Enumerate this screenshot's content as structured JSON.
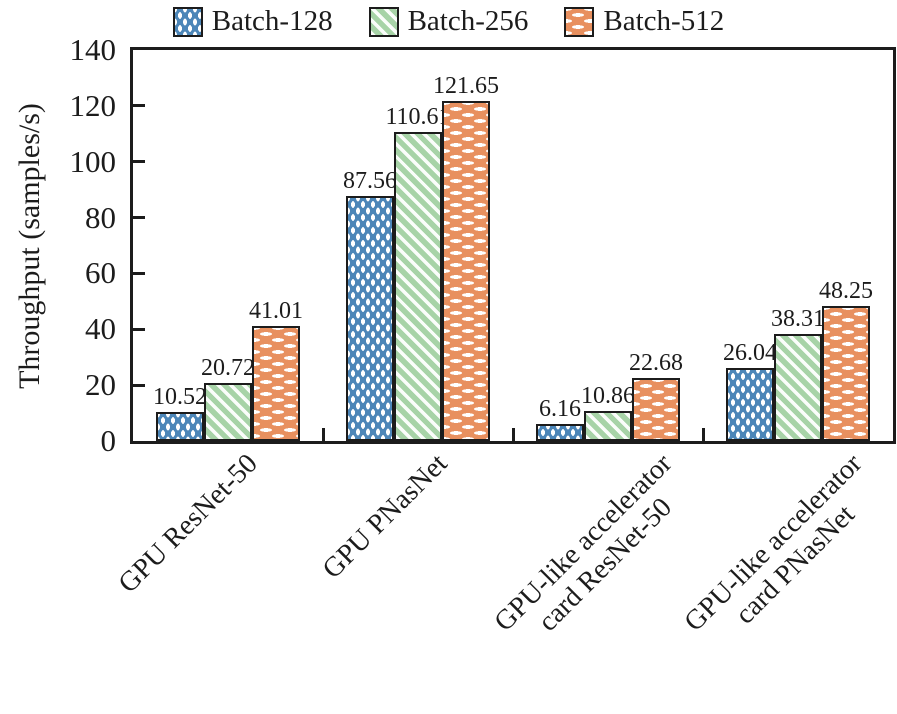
{
  "colors": {
    "batch_128": "#4c86b8",
    "batch_256": "#a7d3a7",
    "batch_512": "#e8905f",
    "axis_and_text": "#1c1c1c",
    "background": "#ffffff"
  },
  "legend": {
    "position": "top",
    "items": [
      {
        "label": "Batch-128",
        "pattern": "white-vertical-dashes-on-blue"
      },
      {
        "label": "Batch-256",
        "pattern": "white-diagonal-stripes-on-green"
      },
      {
        "label": "Batch-512",
        "pattern": "white-horizontal-dashes-on-orange"
      }
    ]
  },
  "chart_data": {
    "type": "bar",
    "title": "",
    "xlabel": "",
    "ylabel": "Throughput (samples/s)",
    "ylim": [
      0,
      140
    ],
    "yticks": [
      0,
      20,
      40,
      60,
      80,
      100,
      120,
      140
    ],
    "grid": false,
    "legend_position": "top",
    "bar_value_labels_shown": true,
    "categories": [
      "GPU ResNet-50",
      "GPU PNasNet",
      "GPU-like accelerator\ncard ResNet-50",
      "GPU-like accelerator\ncard PNasNet"
    ],
    "series": [
      {
        "name": "Batch-128",
        "color": "#4c86b8",
        "pattern": "white-vertical-dashes-on-blue",
        "values": [
          10.52,
          87.56,
          6.16,
          26.04
        ],
        "labels": [
          "10.52",
          "87.56",
          "6.16",
          "26.04"
        ]
      },
      {
        "name": "Batch-256",
        "color": "#a7d3a7",
        "pattern": "white-diagonal-stripes-on-green",
        "values": [
          20.72,
          110.61,
          10.86,
          38.31
        ],
        "labels": [
          "20.72",
          "110.61",
          "10.86",
          "38.31"
        ]
      },
      {
        "name": "Batch-512",
        "color": "#e8905f",
        "pattern": "white-horizontal-dashes-on-orange",
        "values": [
          41.01,
          121.65,
          22.68,
          48.25
        ],
        "labels": [
          "41.01",
          "121.65",
          "22.68",
          "48.25"
        ]
      }
    ]
  }
}
